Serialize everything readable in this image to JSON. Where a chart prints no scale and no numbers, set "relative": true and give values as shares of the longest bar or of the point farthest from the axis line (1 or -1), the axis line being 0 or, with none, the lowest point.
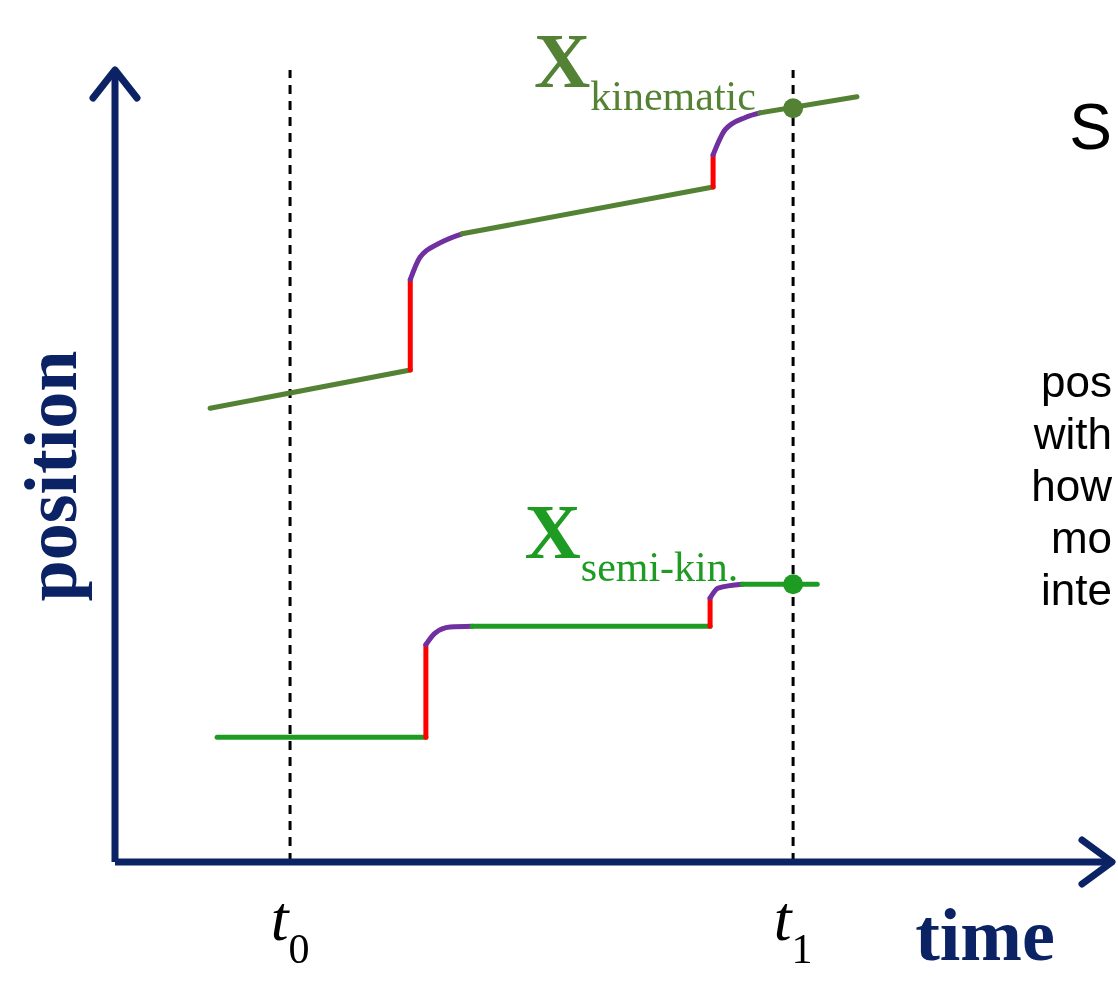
{
  "chart_data": {
    "type": "line",
    "relative": true,
    "xlabel": "time",
    "ylabel": "position",
    "xlim": [
      -0.348,
      1.63
    ],
    "xticks": [
      {
        "value": 0,
        "label": "t$_{0}$"
      },
      {
        "value": 1,
        "label": "t$_{1}$"
      }
    ],
    "legend": false,
    "grid": false,
    "line_style": "solid",
    "marker": "none",
    "ref_lines": [
      {
        "axis": "x",
        "value": 0,
        "color": "#000000",
        "line_style": "dashed"
      },
      {
        "axis": "x",
        "value": 1,
        "color": "#000000",
        "line_style": "dashed"
      }
    ],
    "annotations": [
      "S",
      "pos",
      "with",
      "how",
      "mo",
      "inte"
    ],
    "series": [
      {
        "color": "#548235",
        "x": [
          -0.159,
          0.239
        ],
        "values": [
          0.593,
          0.643
        ]
      },
      {
        "color": "#ff0000",
        "x": [
          0.239,
          0.239
        ],
        "values": [
          0.643,
          0.761
        ]
      },
      {
        "color": "#7030a0",
        "x": [
          0.239,
          0.258,
          0.298,
          0.342
        ],
        "values": [
          0.761,
          0.79,
          0.809,
          0.821
        ]
      },
      {
        "color": "#548235",
        "x": [
          0.342,
          0.841
        ],
        "values": [
          0.821,
          0.882
        ]
      },
      {
        "color": "#ff0000",
        "x": [
          0.841,
          0.841
        ],
        "values": [
          0.882,
          0.924
        ]
      },
      {
        "color": "#7030a0",
        "x": [
          0.841,
          0.865,
          0.905,
          0.934
        ],
        "values": [
          0.924,
          0.957,
          0.973,
          0.979
        ]
      },
      {
        "name": "X$_{kinematic}$",
        "color": "#548235",
        "x": [
          0.934,
          1.127
        ],
        "values": [
          0.979,
          1.0
        ]
      },
      {
        "type": "scatter",
        "marker": "circle",
        "color": "#548235",
        "x": [
          1
        ],
        "values": [
          0.985
        ]
      },
      {
        "color": "#1e9b22",
        "x": [
          -0.145,
          0.27
        ],
        "values": [
          0.163,
          0.163
        ]
      },
      {
        "color": "#ff0000",
        "x": [
          0.27,
          0.27
        ],
        "values": [
          0.163,
          0.284
        ]
      },
      {
        "color": "#7030a0",
        "x": [
          0.27,
          0.288,
          0.318,
          0.362
        ],
        "values": [
          0.284,
          0.299,
          0.307,
          0.308
        ]
      },
      {
        "color": "#1e9b22",
        "x": [
          0.362,
          0.835
        ],
        "values": [
          0.308,
          0.308
        ]
      },
      {
        "color": "#ff0000",
        "x": [
          0.835,
          0.835
        ],
        "values": [
          0.308,
          0.345
        ]
      },
      {
        "color": "#7030a0",
        "x": [
          0.835,
          0.851,
          0.899
        ],
        "values": [
          0.345,
          0.358,
          0.363
        ]
      },
      {
        "name": "X$_{semi-kin.}$",
        "color": "#1e9b22",
        "x": [
          0.899,
          1.048
        ],
        "values": [
          0.363,
          0.363
        ]
      },
      {
        "type": "scatter",
        "marker": "circle",
        "color": "#1e9b22",
        "x": [
          1
        ],
        "values": [
          0.363
        ]
      }
    ]
  }
}
